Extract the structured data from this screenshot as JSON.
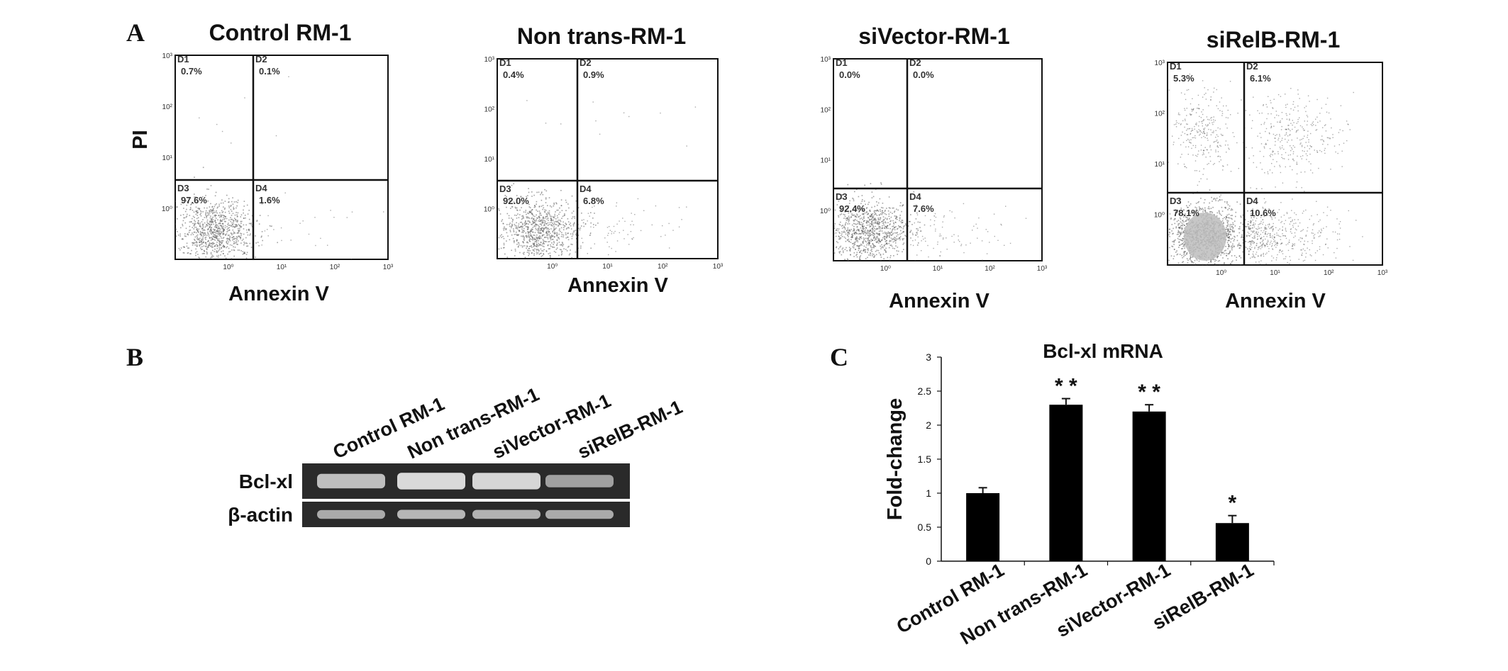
{
  "panels": {
    "a": "A",
    "b": "B",
    "c": "C"
  },
  "colors": {
    "ink": "#111111",
    "dots": "#555555",
    "gel_bg": "#2a2a2a",
    "band": "#e8e8e8",
    "bar": "#000000"
  },
  "flow": {
    "y_axis_label": "PI",
    "x_axis_label": "Annexin V",
    "plots": [
      {
        "title": "Control RM-1",
        "quadrants": [
          {
            "id": "D1",
            "value": "0.7%"
          },
          {
            "id": "D2",
            "value": "0.1%"
          },
          {
            "id": "D3",
            "value": "97.6%"
          },
          {
            "id": "D4",
            "value": "1.6%"
          }
        ]
      },
      {
        "title": "Non trans-RM-1",
        "quadrants": [
          {
            "id": "D1",
            "value": "0.4%"
          },
          {
            "id": "D2",
            "value": "0.9%"
          },
          {
            "id": "D3",
            "value": "92.0%"
          },
          {
            "id": "D4",
            "value": "6.8%"
          }
        ]
      },
      {
        "title": "siVector-RM-1",
        "quadrants": [
          {
            "id": "D1",
            "value": "0.0%"
          },
          {
            "id": "D2",
            "value": "0.0%"
          },
          {
            "id": "D3",
            "value": "92.4%"
          },
          {
            "id": "D4",
            "value": "7.6%"
          }
        ]
      },
      {
        "title": "siRelB-RM-1",
        "quadrants": [
          {
            "id": "D1",
            "value": "5.3%"
          },
          {
            "id": "D2",
            "value": "6.1%"
          },
          {
            "id": "D3",
            "value": "78.1%"
          },
          {
            "id": "D4",
            "value": "10.6%"
          }
        ]
      }
    ]
  },
  "gel": {
    "lanes": [
      "Control RM-1",
      "Non trans-RM-1",
      "siVector-RM-1",
      "siRelB-RM-1"
    ],
    "rows": [
      {
        "label": "Bcl-xl",
        "intensity": [
          0.72,
          0.95,
          0.93,
          0.45
        ]
      },
      {
        "label": "β-actin",
        "intensity": [
          0.55,
          0.65,
          0.62,
          0.55
        ]
      }
    ]
  },
  "chart_data": {
    "type": "bar",
    "title": "Bcl-xl  mRNA",
    "ylabel": "Fold-change",
    "xlabel": "",
    "categories": [
      "Control RM-1",
      "Non trans-RM-1",
      "siVector-RM-1",
      "siRelB-RM-1"
    ],
    "values": [
      1.0,
      2.3,
      2.2,
      0.56
    ],
    "errors": [
      0.08,
      0.09,
      0.1,
      0.11
    ],
    "significance": [
      "",
      "* *",
      "* *",
      "*"
    ],
    "ylim": [
      0,
      3
    ],
    "yticks": [
      "0",
      "0.5",
      "1",
      "1.5",
      "2",
      "2.5",
      "3"
    ],
    "grid": false
  }
}
